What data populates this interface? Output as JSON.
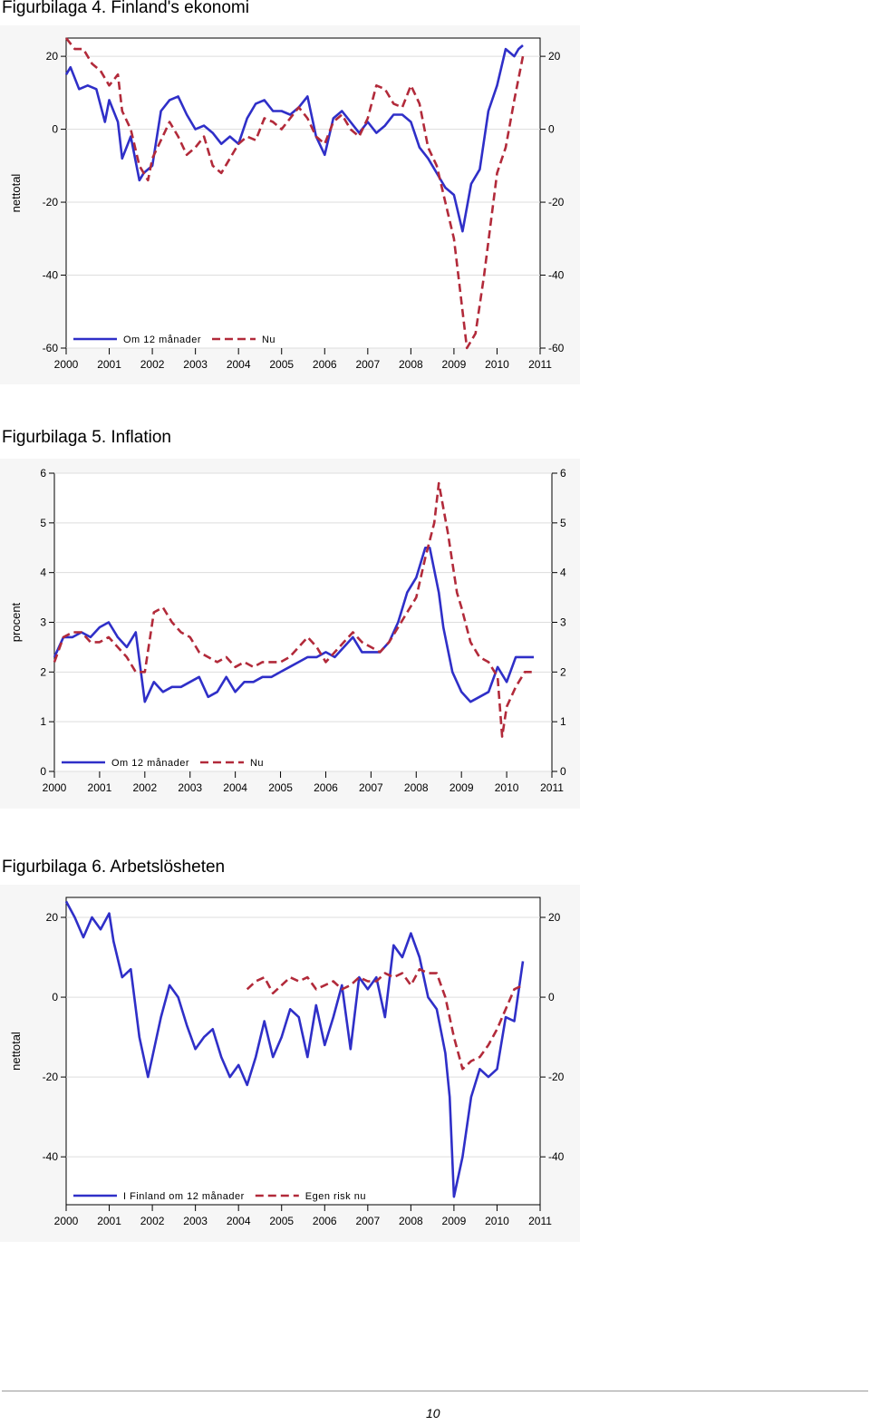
{
  "page": {
    "number": "10"
  },
  "figures": {
    "f4": {
      "title": "Figurbilaga 4. Finland's ekonomi"
    },
    "f5": {
      "title": "Figurbilaga 5. Inflation"
    },
    "f6": {
      "title": "Figurbilaga 6. Arbetslösheten"
    }
  },
  "colors": {
    "series_solid": "#2f2fc8",
    "series_dashed": "#b22a3a",
    "plot_bg": "#ffffff",
    "frame_bg": "#f6f6f6"
  },
  "chart_data": [
    {
      "id": "f4",
      "type": "line",
      "title": "Figurbilaga 4. Finland's ekonomi",
      "ylabel": "nettotal",
      "xlabel": "",
      "xlim": [
        2000,
        2011
      ],
      "ylim": [
        -60,
        25
      ],
      "yticks": [
        -60,
        -40,
        -20,
        0,
        20
      ],
      "xticks": [
        "2000",
        "2001",
        "2002",
        "2003",
        "2004",
        "2005",
        "2006",
        "2007",
        "2008",
        "2009",
        "2010",
        "2011"
      ],
      "right_axis": true,
      "grid": "horizontal",
      "legend": "bottom-left",
      "series": [
        {
          "name": "Om 12 månader",
          "style": "solid",
          "x": [
            2000,
            2000.1,
            2000.3,
            2000.5,
            2000.7,
            2000.9,
            2001,
            2001.2,
            2001.3,
            2001.5,
            2001.7,
            2001.8,
            2002,
            2002.2,
            2002.4,
            2002.6,
            2002.8,
            2003,
            2003.2,
            2003.4,
            2003.6,
            2003.8,
            2004,
            2004.2,
            2004.4,
            2004.6,
            2004.8,
            2005,
            2005.2,
            2005.4,
            2005.6,
            2005.8,
            2006,
            2006.2,
            2006.4,
            2006.6,
            2006.8,
            2007,
            2007.2,
            2007.4,
            2007.6,
            2007.8,
            2008,
            2008.2,
            2008.4,
            2008.6,
            2008.8,
            2009,
            2009.2,
            2009.4,
            2009.6,
            2009.8,
            2010,
            2010.2,
            2010.4,
            2010.5,
            2010.6
          ],
          "y": [
            15,
            17,
            11,
            12,
            11,
            2,
            8,
            2,
            -8,
            -2,
            -14,
            -12,
            -10,
            5,
            8,
            9,
            4,
            0,
            1,
            -1,
            -4,
            -2,
            -4,
            3,
            7,
            8,
            5,
            5,
            4,
            6,
            9,
            -2,
            -7,
            3,
            5,
            2,
            -1,
            2,
            -1,
            1,
            4,
            4,
            2,
            -5,
            -8,
            -12,
            -16,
            -18,
            -28,
            -15,
            -11,
            5,
            12,
            22,
            20,
            22,
            23
          ]
        },
        {
          "name": "Nu",
          "style": "dashed",
          "x": [
            2000,
            2000.2,
            2000.4,
            2000.6,
            2000.8,
            2001,
            2001.2,
            2001.3,
            2001.5,
            2001.7,
            2001.9,
            2002,
            2002.2,
            2002.4,
            2002.6,
            2002.8,
            2003,
            2003.2,
            2003.4,
            2003.6,
            2003.8,
            2004,
            2004.2,
            2004.4,
            2004.6,
            2004.8,
            2005,
            2005.2,
            2005.4,
            2005.6,
            2005.8,
            2006,
            2006.2,
            2006.4,
            2006.6,
            2006.8,
            2007,
            2007.2,
            2007.4,
            2007.6,
            2007.8,
            2008,
            2008.2,
            2008.4,
            2008.6,
            2008.8,
            2009,
            2009.1,
            2009.3,
            2009.5,
            2009.7,
            2010,
            2010.2,
            2010.4,
            2010.6
          ],
          "y": [
            25,
            22,
            22,
            18,
            16,
            12,
            15,
            5,
            0,
            -10,
            -14,
            -8,
            -3,
            2,
            -2,
            -7,
            -5,
            -2,
            -10,
            -12,
            -8,
            -4,
            -2,
            -3,
            3,
            2,
            0,
            3,
            6,
            3,
            -2,
            -4,
            2,
            4,
            0,
            -2,
            3,
            12,
            11,
            7,
            6,
            12,
            7,
            -5,
            -10,
            -20,
            -30,
            -40,
            -60,
            -56,
            -40,
            -12,
            -5,
            8,
            20
          ]
        }
      ]
    },
    {
      "id": "f5",
      "type": "line",
      "title": "Figurbilaga 5. Inflation",
      "ylabel": "procent",
      "xlabel": "",
      "xlim": [
        2000,
        2011
      ],
      "ylim": [
        0,
        6
      ],
      "yticks": [
        0,
        1,
        2,
        3,
        4,
        5,
        6
      ],
      "xticks": [
        "2000",
        "2001",
        "2002",
        "2003",
        "2004",
        "2005",
        "2006",
        "2007",
        "2008",
        "2009",
        "2010",
        "2011"
      ],
      "right_axis": true,
      "grid": "horizontal",
      "legend": "bottom-left",
      "series": [
        {
          "name": "Om 12 månader",
          "style": "solid",
          "x": [
            2000,
            2000.2,
            2000.4,
            2000.6,
            2000.8,
            2001,
            2001.2,
            2001.4,
            2001.6,
            2001.8,
            2002,
            2002.2,
            2002.4,
            2002.6,
            2002.8,
            2003,
            2003.2,
            2003.4,
            2003.6,
            2003.8,
            2004,
            2004.2,
            2004.4,
            2004.6,
            2004.8,
            2005,
            2005.2,
            2005.4,
            2005.6,
            2005.8,
            2006,
            2006.2,
            2006.4,
            2006.6,
            2006.8,
            2007,
            2007.2,
            2007.4,
            2007.6,
            2007.8,
            2008,
            2008.2,
            2008.3,
            2008.5,
            2008.6,
            2008.8,
            2009,
            2009.2,
            2009.4,
            2009.6,
            2009.8,
            2010,
            2010.2,
            2010.4,
            2010.6
          ],
          "y": [
            2.3,
            2.7,
            2.7,
            2.8,
            2.7,
            2.9,
            3.0,
            2.7,
            2.5,
            2.8,
            1.4,
            1.8,
            1.6,
            1.7,
            1.7,
            1.8,
            1.9,
            1.5,
            1.6,
            1.9,
            1.6,
            1.8,
            1.8,
            1.9,
            1.9,
            2.0,
            2.1,
            2.2,
            2.3,
            2.3,
            2.4,
            2.3,
            2.5,
            2.7,
            2.4,
            2.4,
            2.4,
            2.6,
            3.0,
            3.6,
            3.9,
            4.5,
            4.5,
            3.6,
            2.9,
            2.0,
            1.6,
            1.4,
            1.5,
            1.6,
            2.1,
            1.8,
            2.3,
            2.3,
            2.3
          ]
        },
        {
          "name": "Nu",
          "style": "dashed",
          "x": [
            2000,
            2000.2,
            2000.4,
            2000.6,
            2000.8,
            2001,
            2001.2,
            2001.4,
            2001.6,
            2001.8,
            2002,
            2002.2,
            2002.4,
            2002.6,
            2002.8,
            2003,
            2003.2,
            2003.4,
            2003.6,
            2003.8,
            2004,
            2004.2,
            2004.4,
            2004.6,
            2004.8,
            2005,
            2005.2,
            2005.4,
            2005.6,
            2005.8,
            2006,
            2006.2,
            2006.4,
            2006.6,
            2006.8,
            2007,
            2007.2,
            2007.4,
            2007.6,
            2007.8,
            2008,
            2008.2,
            2008.4,
            2008.5,
            2008.7,
            2008.9,
            2009,
            2009.2,
            2009.4,
            2009.6,
            2009.8,
            2009.9,
            2010,
            2010.2,
            2010.4,
            2010.6
          ],
          "y": [
            2.2,
            2.7,
            2.8,
            2.8,
            2.6,
            2.6,
            2.7,
            2.5,
            2.3,
            2.0,
            2.0,
            3.2,
            3.3,
            3.0,
            2.8,
            2.7,
            2.4,
            2.3,
            2.2,
            2.3,
            2.1,
            2.2,
            2.1,
            2.2,
            2.2,
            2.2,
            2.3,
            2.5,
            2.7,
            2.5,
            2.2,
            2.4,
            2.6,
            2.8,
            2.6,
            2.5,
            2.4,
            2.6,
            2.9,
            3.2,
            3.5,
            4.3,
            5.0,
            5.8,
            4.8,
            3.6,
            3.3,
            2.6,
            2.3,
            2.2,
            1.9,
            0.7,
            1.3,
            1.7,
            2.0,
            2.0
          ]
        }
      ]
    },
    {
      "id": "f6",
      "type": "line",
      "title": "Figurbilaga 6. Arbetslösheten",
      "ylabel": "nettotal",
      "xlabel": "",
      "xlim": [
        2000,
        2011
      ],
      "ylim": [
        -52,
        25
      ],
      "yticks": [
        -40,
        -20,
        0,
        20
      ],
      "xticks": [
        "2000",
        "2001",
        "2002",
        "2003",
        "2004",
        "2005",
        "2006",
        "2007",
        "2008",
        "2009",
        "2010",
        "2011"
      ],
      "right_axis": true,
      "grid": "horizontal",
      "legend": "bottom-left",
      "series": [
        {
          "name": "I Finland om 12 månader",
          "style": "solid",
          "x": [
            2000,
            2000.2,
            2000.4,
            2000.6,
            2000.8,
            2001,
            2001.1,
            2001.3,
            2001.5,
            2001.7,
            2001.9,
            2002,
            2002.2,
            2002.4,
            2002.6,
            2002.8,
            2003,
            2003.2,
            2003.4,
            2003.6,
            2003.8,
            2004,
            2004.2,
            2004.4,
            2004.6,
            2004.8,
            2005,
            2005.2,
            2005.4,
            2005.6,
            2005.8,
            2006,
            2006.2,
            2006.4,
            2006.6,
            2006.8,
            2007,
            2007.2,
            2007.4,
            2007.6,
            2007.8,
            2008,
            2008.2,
            2008.4,
            2008.6,
            2008.8,
            2008.9,
            2009,
            2009.2,
            2009.4,
            2009.6,
            2009.8,
            2010,
            2010.2,
            2010.4,
            2010.6
          ],
          "y": [
            24,
            20,
            15,
            20,
            17,
            21,
            14,
            5,
            7,
            -10,
            -20,
            -15,
            -5,
            3,
            0,
            -7,
            -13,
            -10,
            -8,
            -15,
            -20,
            -17,
            -22,
            -15,
            -6,
            -15,
            -10,
            -3,
            -5,
            -15,
            -2,
            -12,
            -5,
            3,
            -13,
            5,
            2,
            5,
            -5,
            13,
            10,
            16,
            10,
            0,
            -3,
            -14,
            -25,
            -50,
            -40,
            -25,
            -18,
            -20,
            -18,
            -5,
            -6,
            9
          ]
        },
        {
          "name": "Egen risk nu",
          "style": "dashed",
          "x": [
            2004.2,
            2004.4,
            2004.6,
            2004.8,
            2005,
            2005.2,
            2005.4,
            2005.6,
            2005.8,
            2006,
            2006.2,
            2006.4,
            2006.6,
            2006.8,
            2007,
            2007.2,
            2007.4,
            2007.6,
            2007.8,
            2008,
            2008.2,
            2008.4,
            2008.6,
            2008.8,
            2009,
            2009.2,
            2009.4,
            2009.6,
            2009.8,
            2010,
            2010.2,
            2010.4,
            2010.6
          ],
          "y": [
            2,
            4,
            5,
            1,
            3,
            5,
            4,
            5,
            2,
            3,
            4,
            2,
            3,
            5,
            4,
            4,
            6,
            5,
            6,
            3,
            7,
            6,
            6,
            0,
            -10,
            -18,
            -16,
            -15,
            -12,
            -8,
            -3,
            2,
            3
          ]
        }
      ]
    }
  ]
}
